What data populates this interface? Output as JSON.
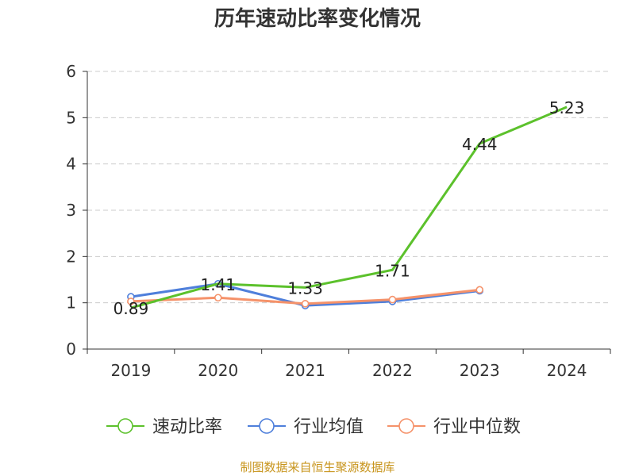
{
  "chart_data": {
    "type": "line",
    "title": "历年速动比率变化情况",
    "categories": [
      "2019",
      "2020",
      "2021",
      "2022",
      "2023",
      "2024"
    ],
    "ylim": [
      0,
      6
    ],
    "yticks": [
      0,
      1,
      2,
      3,
      4,
      5,
      6
    ],
    "grid": true,
    "legend_position": "bottom",
    "series": [
      {
        "name": "速动比率",
        "color": "#5cc12c",
        "values": [
          0.89,
          1.41,
          1.33,
          1.71,
          4.44,
          5.23
        ],
        "labels": [
          "0.89",
          "1.41",
          "1.33",
          "1.71",
          "4.44",
          "5.23"
        ],
        "show_labels": true,
        "show_markers": false
      },
      {
        "name": "行业均值",
        "color": "#4e7fdb",
        "values": [
          1.13,
          1.41,
          0.94,
          1.03,
          1.26,
          null
        ],
        "show_labels": false,
        "show_markers": true
      },
      {
        "name": "行业中位数",
        "color": "#f5926a",
        "values": [
          1.03,
          1.11,
          0.98,
          1.07,
          1.28,
          null
        ],
        "show_labels": false,
        "show_markers": true
      }
    ]
  },
  "footer": {
    "source": "制图数据来自恒生聚源数据库"
  }
}
